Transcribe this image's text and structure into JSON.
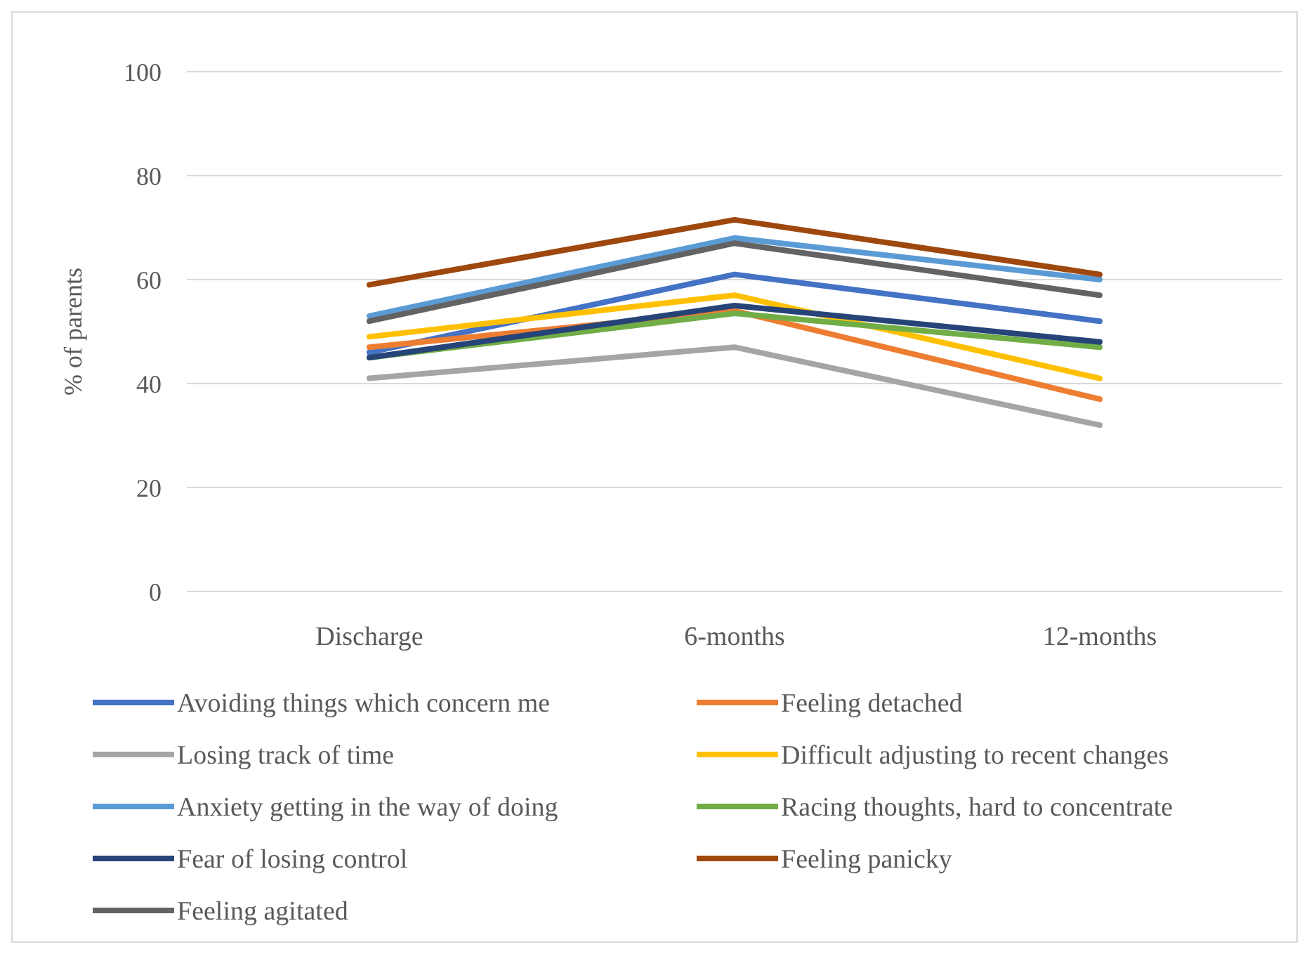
{
  "chart_data": {
    "type": "line",
    "ylabel": "% of parents",
    "categories": [
      "Discharge",
      "6-months",
      "12-months"
    ],
    "ylim": [
      0,
      100
    ],
    "yticks": [
      0,
      20,
      40,
      60,
      80,
      100
    ],
    "grid": "y",
    "legend": "bottom",
    "marker": "none",
    "line_style": "solid",
    "series": [
      {
        "name": "Avoiding things which concern me",
        "color": "#4472c4",
        "values": [
          46,
          61,
          52
        ]
      },
      {
        "name": "Feeling detached",
        "color": "#ed7d31",
        "values": [
          47,
          54,
          37
        ]
      },
      {
        "name": "Losing track of time",
        "color": "#a5a5a5",
        "values": [
          41,
          47,
          32
        ]
      },
      {
        "name": "Difficult adjusting to recent changes",
        "color": "#ffc000",
        "values": [
          49,
          57,
          41
        ]
      },
      {
        "name": "Anxiety getting in the way of doing",
        "color": "#5b9bd5",
        "values": [
          53,
          68,
          60
        ]
      },
      {
        "name": "Racing thoughts, hard to concentrate",
        "color": "#70ad47",
        "values": [
          45,
          53.5,
          47
        ]
      },
      {
        "name": "Fear of losing control",
        "color": "#264478",
        "values": [
          45,
          55,
          48
        ]
      },
      {
        "name": "Feeling panicky",
        "color": "#9e480e",
        "values": [
          59,
          71.5,
          61
        ]
      },
      {
        "name": "Feeling agitated",
        "color": "#636363",
        "values": [
          52,
          67,
          57
        ]
      }
    ]
  }
}
